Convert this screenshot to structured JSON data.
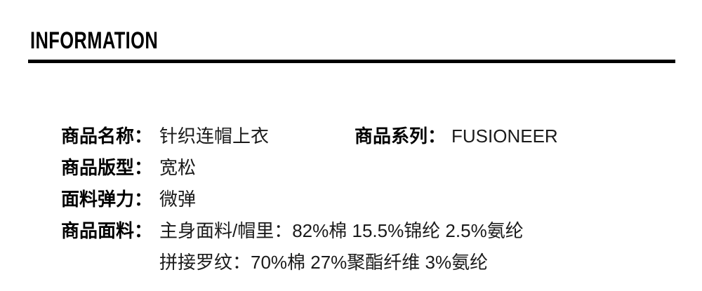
{
  "header": {
    "title": "INFORMATION"
  },
  "product_info": {
    "name": {
      "label": "商品名称：",
      "value": "针织连帽上衣"
    },
    "series": {
      "label": "商品系列：",
      "value": "FUSIONEER"
    },
    "fit": {
      "label": "商品版型：",
      "value": "宽松"
    },
    "stretch": {
      "label": "面料弹力：",
      "value": "微弹"
    },
    "fabric": {
      "label": "商品面料：",
      "lines": [
        "主身面料/帽里：82%棉 15.5%锦纶 2.5%氨纶",
        "拼接罗纹：70%棉 27%聚酯纤维 3%氨纶"
      ]
    }
  },
  "colors": {
    "background": "#ffffff",
    "label_text": "#000000",
    "value_text": "#1a1a1a",
    "divider": "#000000"
  }
}
